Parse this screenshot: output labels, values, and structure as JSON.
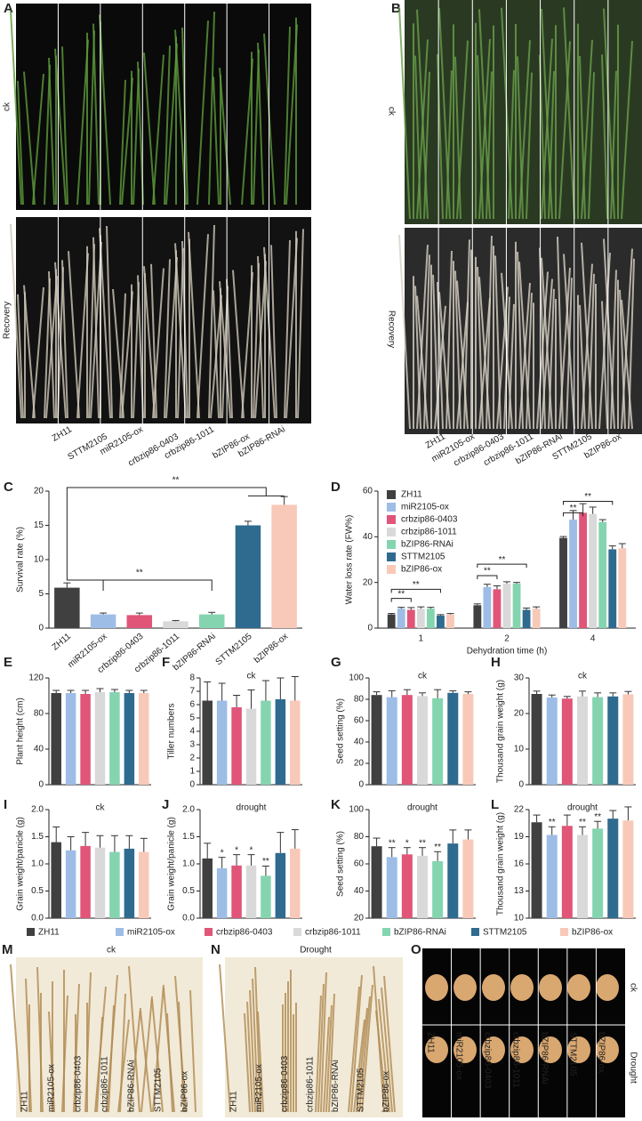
{
  "photo_panels": [
    {
      "label": "A",
      "rows": [
        "ck",
        "Recovery"
      ],
      "genotypes": [
        "ZH11",
        "STTM2105",
        "miR2105-ox",
        "crbzip86-0403",
        "crbzip86-1011",
        "bZIP86-ox",
        "bZIP86-RNAi"
      ]
    },
    {
      "label": "B",
      "rows": [
        "ck",
        "Recovery"
      ],
      "genotypes": [
        "ZH11",
        "miR2105-ox",
        "crbzip86-0403",
        "crbzip86-1011",
        "bZIP86-RNAi",
        "STTM2105",
        "bZIP86-ox"
      ]
    },
    {
      "label": "M",
      "rows": [
        "ck"
      ],
      "genotypes": [
        "ZH11",
        "miR2105-ox",
        "crbzip86-0403",
        "crbzip86-1011",
        "bZIP86-RNAi",
        "STTM2105",
        "bZIP86-ox"
      ]
    },
    {
      "label": "N",
      "rows": [
        "Drought"
      ],
      "genotypes": [
        "ZH11",
        "miR2105-ox",
        "crbzip86-0403",
        "crbzip86-1011",
        "bZIP86-RNAi",
        "STTM2105",
        "bZIP86-ox"
      ]
    },
    {
      "label": "O",
      "rows": [
        "ck",
        "Drought"
      ],
      "genotypes": [
        "ZH11",
        "miR2105-ox",
        "crbzip86-0403",
        "crbzip86-1011",
        "bZIP86-RNAi",
        "STTM2105",
        "bZIP86-ox"
      ]
    }
  ],
  "chart_data": [
    {
      "type": "bar",
      "label": "C",
      "ylabel": "Survival rate (%)",
      "categories": [
        "ZH11",
        "miR2105-ox",
        "crbzip86-0403",
        "crbzip86-1011",
        "bZIP86-RNAi",
        "STTM2105",
        "bZIP86-ox"
      ],
      "values": [
        5.9,
        2.0,
        1.9,
        1.0,
        2.0,
        15.0,
        18.0
      ],
      "errors": [
        0.7,
        0.2,
        0.3,
        0.1,
        0.3,
        0.6,
        1.2
      ],
      "colors": [
        "#404040",
        "#9dbde6",
        "#e05578",
        "#d9d9d9",
        "#85d4b0",
        "#2f6a8f",
        "#f8c9b8"
      ],
      "annotations": [
        "**",
        "**"
      ],
      "ylim": [
        0,
        20
      ],
      "yticks": [
        0,
        5,
        10,
        15,
        20
      ]
    },
    {
      "type": "grouped_bar",
      "label": "D",
      "ylabel": "Water loss rate (FW%)",
      "xlabel": "Dehydration time (h)",
      "categories": [
        "1",
        "2",
        "4"
      ],
      "series": [
        {
          "name": "ZH11",
          "color": "#404040",
          "values": [
            6,
            10,
            39.5
          ],
          "errors": [
            0.4,
            0.6,
            0.6
          ]
        },
        {
          "name": "miR2105-ox",
          "color": "#9dbde6",
          "values": [
            8.5,
            18,
            47.5
          ],
          "errors": [
            0.6,
            1.2,
            4
          ]
        },
        {
          "name": "crbzip86-0403",
          "color": "#e05578",
          "values": [
            8,
            17,
            50.5
          ],
          "errors": [
            1,
            1.5,
            4
          ]
        },
        {
          "name": "crbzip86-1011",
          "color": "#d9d9d9",
          "values": [
            8.5,
            19.5,
            50
          ],
          "errors": [
            0.8,
            0.8,
            3
          ]
        },
        {
          "name": "bZIP86-RNAi",
          "color": "#85d4b0",
          "values": [
            8.5,
            19.5,
            46.5
          ],
          "errors": [
            0.6,
            0.5,
            1
          ]
        },
        {
          "name": "STTM2105",
          "color": "#2f6a8f",
          "values": [
            5.5,
            8,
            34.5
          ],
          "errors": [
            0.4,
            0.8,
            1.5
          ]
        },
        {
          "name": "bZIP86-ox",
          "color": "#f8c9b8",
          "values": [
            6,
            8.5,
            35
          ],
          "errors": [
            0.4,
            0.8,
            2
          ]
        }
      ],
      "annotations": [
        "**",
        "**",
        "**",
        "**",
        "**",
        "**"
      ],
      "ylim": [
        0,
        60
      ],
      "yticks": [
        0,
        20,
        40,
        60
      ]
    },
    {
      "type": "bar",
      "label": "E",
      "ylabel": "Plant height (cm)",
      "values": [
        103,
        103,
        102,
        104,
        104,
        103,
        103
      ],
      "errors": [
        3,
        3,
        4,
        4,
        3,
        3,
        3
      ],
      "ylim": [
        0,
        120
      ],
      "yticks": [
        0,
        40,
        80,
        120
      ]
    },
    {
      "type": "bar",
      "label": "F",
      "ylabel": "Tiller numbers",
      "annotation": "ck",
      "values": [
        6.3,
        6.3,
        5.8,
        5.7,
        6.3,
        6.4,
        6.3
      ],
      "errors": [
        1.4,
        1.3,
        0.9,
        1.4,
        1.5,
        1.6,
        1.8
      ],
      "ylim": [
        0,
        8
      ],
      "yticks": [
        0,
        1,
        2,
        3,
        4,
        5,
        6,
        7,
        8
      ]
    },
    {
      "type": "bar",
      "label": "G",
      "ylabel": "Seed setting (%)",
      "annotation": "ck",
      "values": [
        84,
        82,
        84,
        83,
        81,
        86,
        85
      ],
      "errors": [
        3,
        6,
        5,
        3,
        8,
        2,
        2
      ],
      "ylim": [
        0,
        100
      ],
      "yticks": [
        0,
        20,
        40,
        60,
        80,
        100
      ]
    },
    {
      "type": "bar",
      "label": "H",
      "ylabel": "Thousand grain weight (g)",
      "annotation": "ck",
      "values": [
        25.5,
        24.5,
        24.2,
        24.8,
        24.6,
        24.8,
        25.4
      ],
      "errors": [
        0.8,
        0.7,
        0.6,
        1.5,
        1.2,
        1,
        0.8
      ],
      "ylim": [
        0,
        30
      ],
      "yticks": [
        0,
        10,
        20,
        30
      ]
    },
    {
      "type": "bar",
      "label": "I",
      "ylabel": "Grain weight/panicle (g)",
      "annotation": "ck",
      "values": [
        1.4,
        1.25,
        1.33,
        1.3,
        1.22,
        1.28,
        1.22
      ],
      "errors": [
        0.28,
        0.25,
        0.25,
        0.22,
        0.3,
        0.24,
        0.25
      ],
      "ylim": [
        0,
        2
      ],
      "yticks": [
        {
          "value": 0,
          "label": "0.0"
        },
        0.5,
        {
          "value": 1,
          "label": "1.0"
        },
        1.5,
        {
          "value": 2,
          "label": "2.0"
        }
      ]
    },
    {
      "type": "bar",
      "label": "J",
      "ylabel": "Grain weight/panicle (g)",
      "annotation": "drought",
      "values": [
        1.1,
        0.92,
        0.97,
        0.97,
        0.78,
        1.2,
        1.28
      ],
      "errors": [
        0.28,
        0.2,
        0.2,
        0.2,
        0.18,
        0.38,
        0.35
      ],
      "stars": [
        null,
        "*",
        "*",
        "*",
        "**",
        null,
        null
      ],
      "ylim": [
        0,
        2
      ],
      "yticks": [
        {
          "value": 0,
          "label": "0.0"
        },
        0.5,
        {
          "value": 1,
          "label": "1.0"
        },
        1.5,
        {
          "value": 2,
          "label": "2.0"
        }
      ]
    },
    {
      "type": "bar",
      "label": "K",
      "ylabel": "Seed setting (%)",
      "annotation": "drought",
      "values": [
        73,
        65,
        67,
        66,
        62,
        75,
        78
      ],
      "errors": [
        6,
        7,
        5,
        6,
        7,
        10,
        7
      ],
      "stars": [
        null,
        "**",
        "*",
        "**",
        "**",
        null,
        null
      ],
      "ylim": [
        20,
        100
      ],
      "yticks": [
        20,
        40,
        60,
        80,
        100
      ]
    },
    {
      "type": "bar",
      "label": "L",
      "ylabel": "Thousand grain weight (g)",
      "annotation": "drought",
      "values": [
        20.6,
        19.2,
        20.2,
        19.2,
        19.9,
        21.0,
        20.8
      ],
      "errors": [
        0.8,
        0.9,
        1.2,
        0.9,
        0.8,
        0.9,
        1.5
      ],
      "stars": [
        null,
        "**",
        null,
        "**",
        "**",
        null,
        null
      ],
      "ylim": [
        10,
        22
      ],
      "yticks": [
        10,
        13,
        16,
        19,
        22
      ]
    }
  ]
}
